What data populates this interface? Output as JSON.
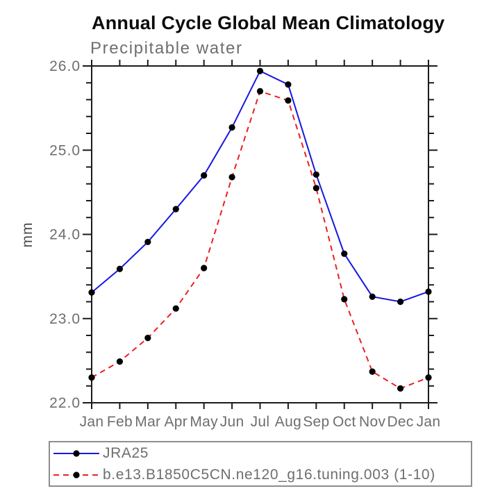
{
  "chart_data": {
    "type": "line",
    "title": "Annual Cycle Global Mean Climatology",
    "subtitle": "Precipitable water",
    "ylabel": "mm",
    "xlabel": "",
    "categories": [
      "Jan",
      "Feb",
      "Mar",
      "Apr",
      "May",
      "Jun",
      "Jul",
      "Aug",
      "Sep",
      "Oct",
      "Nov",
      "Dec",
      "Jan"
    ],
    "ylim": [
      22.0,
      26.0
    ],
    "y_major_tick_step": 1.0,
    "y_minor_tick_step": 0.2,
    "y_tick_labels": [
      "26.0",
      "25.0",
      "24.0",
      "23.0",
      "22.0"
    ],
    "grid": false,
    "legend_position": "bottom-left-box",
    "marker": {
      "shape": "filled-circle",
      "color": "#000000"
    },
    "axis_color": "#1a1a1a",
    "label_color": "#6e6e6e",
    "series": [
      {
        "name": "JRA25",
        "line_style": "solid",
        "color": "#1717e2",
        "values": [
          23.31,
          23.59,
          23.91,
          24.3,
          24.7,
          25.27,
          25.94,
          25.78,
          24.71,
          23.77,
          23.26,
          23.2,
          23.32
        ]
      },
      {
        "name": "b.e13.B1850C5CN.ne120_g16.tuning.003 (1-10)",
        "line_style": "dashed",
        "color": "#ee1e1e",
        "values": [
          22.3,
          22.49,
          22.77,
          23.12,
          23.6,
          24.68,
          25.7,
          25.59,
          24.55,
          23.23,
          22.37,
          22.17,
          22.3
        ]
      }
    ]
  }
}
